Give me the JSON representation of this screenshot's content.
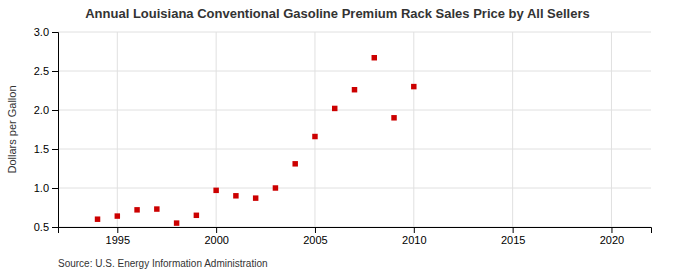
{
  "chart_data": {
    "type": "scatter",
    "title": "Annual Louisiana Conventional Gasoline Premium Rack Sales Price by All Sellers",
    "ylabel": "Dollars per Gallon",
    "annotations": [
      "Source: U.S. Energy Information Administration"
    ],
    "x": [
      1994,
      1995,
      1996,
      1997,
      1998,
      1999,
      2000,
      2001,
      2002,
      2003,
      2004,
      2005,
      2006,
      2007,
      2008,
      2009,
      2010
    ],
    "values": [
      0.6,
      0.64,
      0.72,
      0.73,
      0.55,
      0.65,
      0.97,
      0.9,
      0.87,
      1.0,
      1.31,
      1.66,
      2.02,
      2.26,
      2.67,
      1.9,
      2.3
    ],
    "color": "#cc0000",
    "marker": "square",
    "xlim": [
      1992,
      2022
    ],
    "ylim": [
      0.5,
      3.0
    ],
    "xticks": [
      1995,
      2000,
      2005,
      2010,
      2015,
      2020
    ],
    "yticks": [
      0.5,
      {
        "value": 1,
        "label": "1.0"
      },
      1.5,
      {
        "value": 2,
        "label": "2.0"
      },
      2.5,
      {
        "value": 3,
        "label": "3.0"
      }
    ],
    "grid": true
  }
}
